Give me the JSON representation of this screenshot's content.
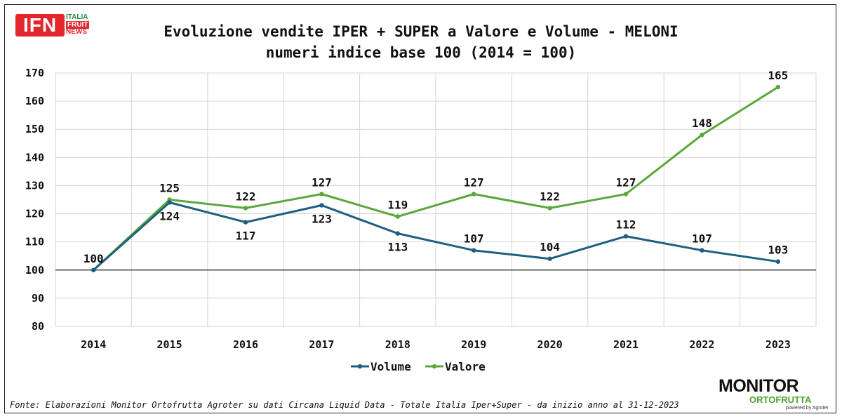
{
  "header": {
    "title_line1": "Evoluzione vendite IPER + SUPER a Valore e Volume - MELONI",
    "title_line2": "numeri indice base 100 (2014 = 100)"
  },
  "logo_ifn": {
    "mark": "IFN",
    "word1": "ITALIA",
    "word2": "FRUIT",
    "word3": "NEWS"
  },
  "logo_monitor": {
    "word1": "MONITOR",
    "word2": "ORTOFRUTTA",
    "word3": "powered by Agroter"
  },
  "footer": {
    "source": "Fonte: Elaborazioni Monitor Ortofrutta Agroter su dati Circana Liquid Data - Totale Italia Iper+Super -  da inizio anno al 31-12-2023"
  },
  "chart_data": {
    "type": "line",
    "x": [
      "2014",
      "2015",
      "2016",
      "2017",
      "2018",
      "2019",
      "2020",
      "2021",
      "2022",
      "2023"
    ],
    "series": [
      {
        "name": "Volume",
        "color": "#1f5f7f",
        "values": [
          100,
          124,
          117,
          123,
          113,
          107,
          104,
          112,
          107,
          103
        ]
      },
      {
        "name": "Valore",
        "color": "#5aa83a",
        "values": [
          100,
          125,
          122,
          127,
          119,
          127,
          122,
          127,
          148,
          165
        ]
      }
    ],
    "ylim": [
      80,
      170
    ],
    "yticks": [
      "80",
      "90",
      "100",
      "110",
      "120",
      "130",
      "140",
      "150",
      "160",
      "170"
    ],
    "baseline": 100,
    "grid": true,
    "legend_position": "bottom-center"
  }
}
